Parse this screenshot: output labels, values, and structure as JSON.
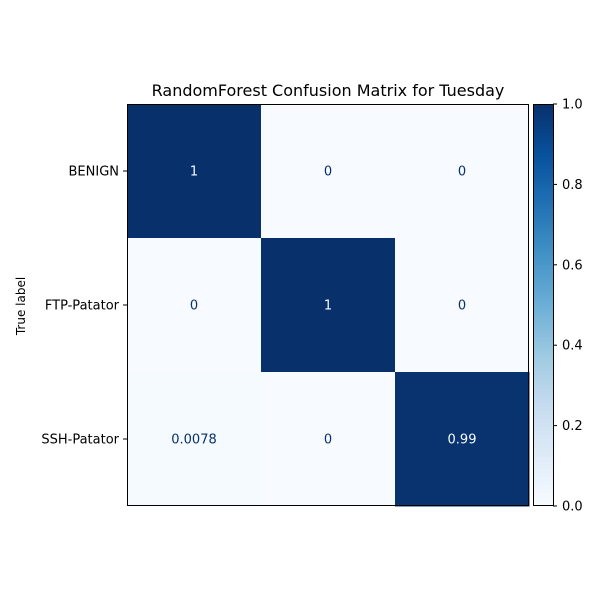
{
  "chart_data": {
    "type": "heatmap",
    "title": "RandomForest Confusion Matrix for Tuesday",
    "ylabel": "True label",
    "xlabel": "",
    "row_labels": [
      "BENIGN",
      "FTP-Patator",
      "SSH-Patator"
    ],
    "col_labels": [
      "",
      "",
      ""
    ],
    "values": [
      [
        1,
        0,
        0
      ],
      [
        0,
        1,
        0
      ],
      [
        0.0078,
        0,
        0.99
      ]
    ],
    "cell_text": [
      [
        "1",
        "0",
        "0"
      ],
      [
        "0",
        "1",
        "0"
      ],
      [
        "0.0078",
        "0",
        "0.99"
      ]
    ],
    "colormap": "Blues",
    "colormap_low": "#f7fbff",
    "colormap_high": "#08306b",
    "text_on_dark": "#f7fbff",
    "text_on_light": "#08306b",
    "colorbar": {
      "min": 0.0,
      "max": 1.0,
      "ticks": [
        "0.0",
        "0.2",
        "0.4",
        "0.6",
        "0.8",
        "1.0"
      ]
    }
  }
}
